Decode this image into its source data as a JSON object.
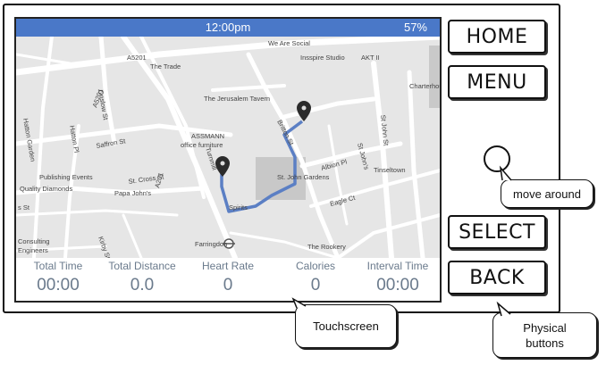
{
  "status_bar": {
    "time": "12:00pm",
    "battery": "57%"
  },
  "map": {
    "labels": {
      "we_are_social": "We Are Social",
      "insspire_studio": "Insspire Studio",
      "akt": "AKT II",
      "charterhouse": "Charterhou",
      "the_trade": "The Trade",
      "a5201_top": "A5201",
      "a5201_left": "A5201",
      "a201": "A201",
      "jerusalem_tavern": "The Jerusalem Tavern",
      "britton_st": "Britton St",
      "st_john_st_right": "St John St",
      "st_johns_top": "St John's",
      "assmann": "ASSMANN",
      "office_furniture": "office furniture",
      "saffron_st": "Saffron St",
      "onslow_st": "Onslow St",
      "hatton_garden": "Hatton Garden",
      "hatton_pl": "Hatton Pl",
      "st_cross_st": "St. Cross St",
      "turnmill": "Turnmill",
      "st_john_gardens": "St. John Gardens",
      "albion_pl": "Albion Pl",
      "eagle_ct": "Eagle Ct",
      "st_john_st_mid": "St John St",
      "tinseltown": "Tinseltown",
      "publishing_events": "Publishing Events",
      "quality_diamonds": "Quality Diamonds",
      "papa_johns": "Papa John's",
      "spiritss": "Spirits",
      "farringdon": "Farringdon",
      "the_rookery": "The Rookery",
      "consulting_engineers": "Consulting",
      "engineers": "Engineers",
      "kirby_st": "Kirby St",
      "ss_st": "s St"
    }
  },
  "stats": [
    {
      "label": "Total Time",
      "value": "00:00"
    },
    {
      "label": "Total Distance",
      "value": "0.0"
    },
    {
      "label": "Heart Rate",
      "value": "0"
    },
    {
      "label": "Calories",
      "value": "0"
    },
    {
      "label": "Interval Time",
      "value": "00:00"
    }
  ],
  "buttons": {
    "home": "HOME",
    "menu": "MENU",
    "select": "SELECT",
    "back": "BACK"
  },
  "callouts": {
    "move_around": "move around",
    "touchscreen": "Touchscreen",
    "physical_buttons_line1": "Physical",
    "physical_buttons_line2": "buttons"
  },
  "colors": {
    "status_bar": "#4a78c8",
    "route": "#5b7fc4",
    "stat_text": "#6a7a8c",
    "map_bg": "#e6e6e6",
    "road": "#ffffff"
  }
}
